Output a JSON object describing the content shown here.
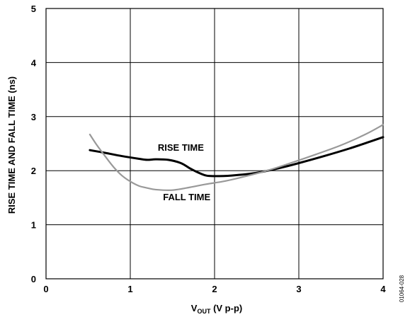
{
  "chart_data": {
    "type": "line",
    "xlabel_main": "V",
    "xlabel_sub": "OUT",
    "xlabel_rest": " (V p-p)",
    "ylabel": "RISE TIME AND FALL TIME (ns)",
    "xlim": [
      0,
      4
    ],
    "ylim": [
      0,
      5
    ],
    "xticks": [
      "0",
      "1",
      "2",
      "3",
      "4"
    ],
    "yticks": [
      "0",
      "1",
      "2",
      "3",
      "4",
      "5"
    ],
    "grid": true,
    "figure_id": "01064-028",
    "series": [
      {
        "name": "RISE TIME",
        "color": "#000000",
        "points": [
          [
            0.52,
            2.38
          ],
          [
            0.7,
            2.33
          ],
          [
            0.9,
            2.27
          ],
          [
            1.1,
            2.22
          ],
          [
            1.2,
            2.2
          ],
          [
            1.3,
            2.21
          ],
          [
            1.45,
            2.2
          ],
          [
            1.6,
            2.14
          ],
          [
            1.7,
            2.05
          ],
          [
            1.8,
            1.97
          ],
          [
            1.9,
            1.91
          ],
          [
            2.0,
            1.9
          ],
          [
            2.2,
            1.91
          ],
          [
            2.5,
            1.96
          ],
          [
            2.8,
            2.06
          ],
          [
            3.0,
            2.14
          ],
          [
            3.3,
            2.27
          ],
          [
            3.6,
            2.41
          ],
          [
            3.85,
            2.54
          ],
          [
            4.0,
            2.62
          ]
        ]
      },
      {
        "name": "FALL TIME",
        "color": "#999999",
        "points": [
          [
            0.52,
            2.67
          ],
          [
            0.6,
            2.48
          ],
          [
            0.7,
            2.27
          ],
          [
            0.8,
            2.07
          ],
          [
            0.9,
            1.91
          ],
          [
            1.0,
            1.8
          ],
          [
            1.1,
            1.72
          ],
          [
            1.2,
            1.68
          ],
          [
            1.3,
            1.65
          ],
          [
            1.5,
            1.64
          ],
          [
            1.7,
            1.69
          ],
          [
            1.9,
            1.75
          ],
          [
            2.1,
            1.8
          ],
          [
            2.3,
            1.87
          ],
          [
            2.6,
            1.99
          ],
          [
            2.9,
            2.14
          ],
          [
            3.2,
            2.3
          ],
          [
            3.5,
            2.47
          ],
          [
            3.8,
            2.68
          ],
          [
            4.0,
            2.85
          ]
        ]
      }
    ],
    "labels": [
      {
        "text": "RISE TIME",
        "x": 1.6,
        "y": 2.37
      },
      {
        "text": "FALL TIME",
        "x": 1.67,
        "y": 1.45
      }
    ]
  }
}
